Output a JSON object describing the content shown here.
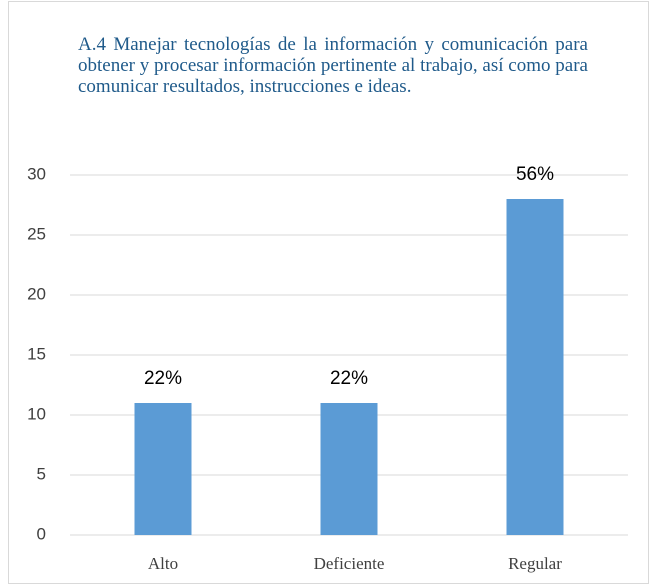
{
  "chart_data": {
    "type": "bar",
    "title": "A.4 Manejar tecnologías de la información y comunicación para obtener y procesar información pertinente al trabajo, así como para comunicar resultados, instrucciones e ideas.",
    "categories": [
      "Alto",
      "Deficiente",
      "Regular"
    ],
    "values": [
      11,
      11,
      28
    ],
    "value_labels": [
      "22%",
      "22%",
      "56%"
    ],
    "color": "#5b9bd5",
    "ylim": [
      0,
      30
    ],
    "yticks": [
      0,
      5,
      10,
      15,
      20,
      25,
      30
    ],
    "grid": true
  }
}
